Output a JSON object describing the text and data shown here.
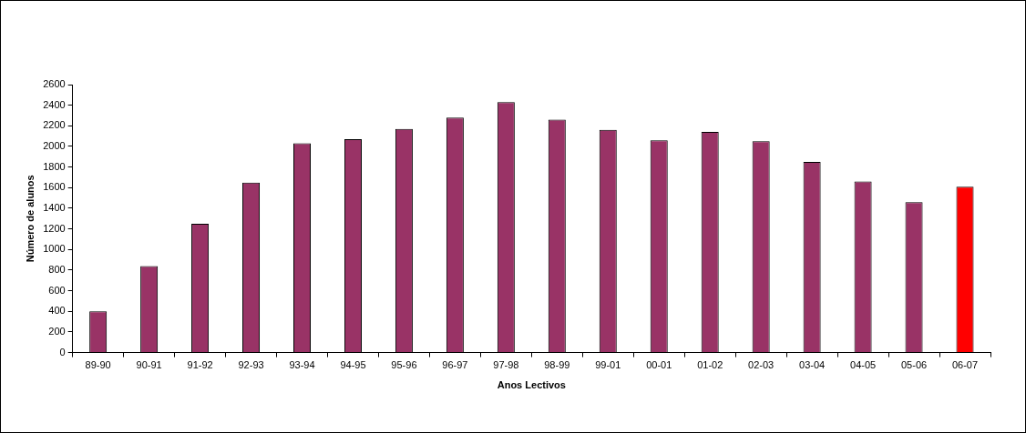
{
  "chart_data": {
    "type": "bar",
    "xlabel": "Anos Lectivos",
    "ylabel": "Número de alunos",
    "categories": [
      "89-90",
      "90-91",
      "91-92",
      "92-93",
      "93-94",
      "94-95",
      "95-96",
      "96-97",
      "97-98",
      "98-99",
      "99-01",
      "00-01",
      "01-02",
      "02-03",
      "03-04",
      "04-05",
      "05-06",
      "06-07"
    ],
    "values": [
      400,
      840,
      1250,
      1650,
      2030,
      2070,
      2170,
      2280,
      2430,
      2260,
      2160,
      2060,
      2140,
      2050,
      1850,
      1660,
      1460,
      1610
    ],
    "colors": [
      "#993366",
      "#993366",
      "#993366",
      "#993366",
      "#993366",
      "#993366",
      "#993366",
      "#993366",
      "#993366",
      "#993366",
      "#993366",
      "#993366",
      "#993366",
      "#993366",
      "#993366",
      "#993366",
      "#993366",
      "#ff0000"
    ],
    "ylim": [
      0,
      2600
    ],
    "yticks": [
      0,
      200,
      400,
      600,
      800,
      1000,
      1200,
      1400,
      1600,
      1800,
      2000,
      2200,
      2400,
      2600
    ],
    "grid": false,
    "legend": false
  }
}
